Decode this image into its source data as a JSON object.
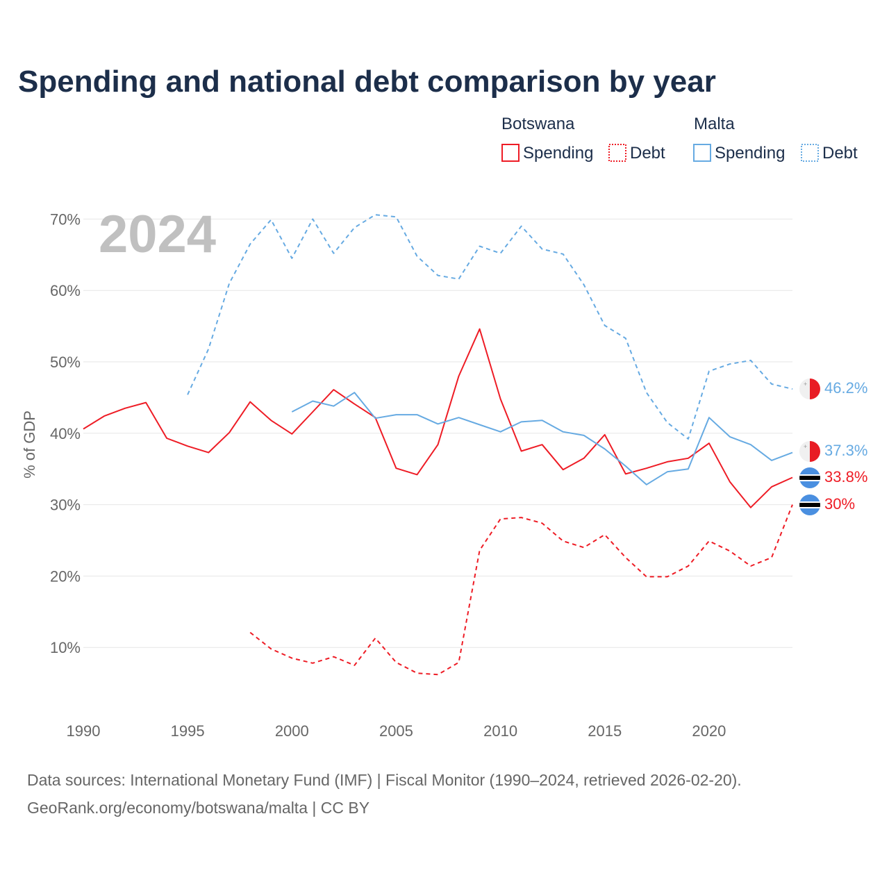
{
  "title": "Spending and national debt comparison by year",
  "year_label": "2024",
  "legend": {
    "groups": [
      {
        "name": "Botswana",
        "color": "#ee1c25",
        "items": [
          {
            "label": "Spending",
            "style": "solid"
          },
          {
            "label": "Debt",
            "style": "dotted"
          }
        ]
      },
      {
        "name": "Malta",
        "color": "#66aae2",
        "items": [
          {
            "label": "Spending",
            "style": "solid"
          },
          {
            "label": "Debt",
            "style": "dotted"
          }
        ]
      }
    ]
  },
  "source_lines": [
    "Data sources: International Monetary Fund (IMF) | Fiscal Monitor (1990–2024, retrieved 2026-02-20).",
    "GeoRank.org/economy/botswana/malta | CC BY"
  ],
  "end_labels": [
    {
      "text": "46.2%",
      "series": "Malta Debt",
      "flag": "malta-flag-icon"
    },
    {
      "text": "37.3%",
      "series": "Malta Spending",
      "flag": "malta-flag-icon"
    },
    {
      "text": "33.8%",
      "series": "Botswana Spending",
      "flag": "botswana-flag-icon"
    },
    {
      "text": "30%",
      "series": "Botswana Debt",
      "flag": "botswana-flag-icon"
    }
  ],
  "chart_data": {
    "type": "line",
    "title": "Spending and national debt comparison by year",
    "xlabel": "",
    "ylabel": "% of GDP",
    "xlim": [
      1990,
      2024
    ],
    "ylim": [
      0,
      70
    ],
    "x_ticks": [
      1990,
      1995,
      2000,
      2005,
      2010,
      2015,
      2020
    ],
    "x_tick_labels": [
      "1990",
      "1995",
      "2000",
      "2005",
      "2010",
      "2015",
      "2020"
    ],
    "y_ticks": [
      10,
      20,
      30,
      40,
      50,
      60,
      70
    ],
    "y_tick_labels": [
      "10%",
      "20%",
      "30%",
      "40%",
      "50%",
      "60%",
      "70%"
    ],
    "grid": true,
    "series": [
      {
        "name": "Botswana Spending",
        "color": "#ee1c25",
        "dash": "solid",
        "x": [
          1990,
          1991,
          1992,
          1993,
          1994,
          1995,
          1996,
          1997,
          1998,
          1999,
          2000,
          2001,
          2002,
          2003,
          2004,
          2005,
          2006,
          2007,
          2008,
          2009,
          2010,
          2011,
          2012,
          2013,
          2014,
          2015,
          2016,
          2017,
          2018,
          2019,
          2020,
          2021,
          2022,
          2023,
          2024
        ],
        "values": [
          40.6,
          42.4,
          43.5,
          44.3,
          39.3,
          38.2,
          37.3,
          40.1,
          44.4,
          41.8,
          39.9,
          43.0,
          46.1,
          44.1,
          42.2,
          35.1,
          34.2,
          38.4,
          48.0,
          54.6,
          44.8,
          37.5,
          38.4,
          34.9,
          36.5,
          39.8,
          34.3,
          35.1,
          36.0,
          36.5,
          38.6,
          33.2,
          29.6,
          32.5,
          33.8
        ]
      },
      {
        "name": "Botswana Debt",
        "color": "#ee1c25",
        "dash": "dashed",
        "x": [
          1998,
          1999,
          2000,
          2001,
          2002,
          2003,
          2004,
          2005,
          2006,
          2007,
          2008,
          2009,
          2010,
          2011,
          2012,
          2013,
          2014,
          2015,
          2016,
          2017,
          2018,
          2019,
          2020,
          2021,
          2022,
          2023,
          2024
        ],
        "values": [
          12.1,
          9.8,
          8.5,
          7.8,
          8.7,
          7.5,
          11.3,
          7.9,
          6.4,
          6.2,
          7.9,
          23.6,
          28.0,
          28.2,
          27.4,
          24.9,
          24.0,
          25.8,
          22.6,
          19.9,
          19.9,
          21.4,
          24.9,
          23.5,
          21.4,
          22.6,
          30.0
        ]
      },
      {
        "name": "Malta Spending",
        "color": "#66aae2",
        "dash": "solid",
        "x": [
          2000,
          2001,
          2002,
          2003,
          2004,
          2005,
          2006,
          2007,
          2008,
          2009,
          2010,
          2011,
          2012,
          2013,
          2014,
          2015,
          2016,
          2017,
          2018,
          2019,
          2020,
          2021,
          2022,
          2023,
          2024
        ],
        "values": [
          43.0,
          44.5,
          43.8,
          45.7,
          42.1,
          42.6,
          42.6,
          41.3,
          42.2,
          41.2,
          40.2,
          41.6,
          41.8,
          40.2,
          39.7,
          37.8,
          35.4,
          32.8,
          34.6,
          35.0,
          42.2,
          39.5,
          38.4,
          36.2,
          37.3
        ]
      },
      {
        "name": "Malta Debt",
        "color": "#66aae2",
        "dash": "dashed",
        "x": [
          1995,
          1996,
          1997,
          1998,
          1999,
          2000,
          2001,
          2002,
          2003,
          2004,
          2005,
          2006,
          2007,
          2008,
          2009,
          2010,
          2011,
          2012,
          2013,
          2014,
          2015,
          2016,
          2017,
          2018,
          2019,
          2020,
          2021,
          2022,
          2023,
          2024
        ],
        "values": [
          45.4,
          51.8,
          61.0,
          66.5,
          69.9,
          64.5,
          70.0,
          65.2,
          68.8,
          70.6,
          70.3,
          64.8,
          62.1,
          61.6,
          66.2,
          65.2,
          69.0,
          65.8,
          65.1,
          60.8,
          55.1,
          53.3,
          45.7,
          41.5,
          39.2,
          48.7,
          49.7,
          50.2,
          46.9,
          46.2
        ]
      }
    ]
  }
}
